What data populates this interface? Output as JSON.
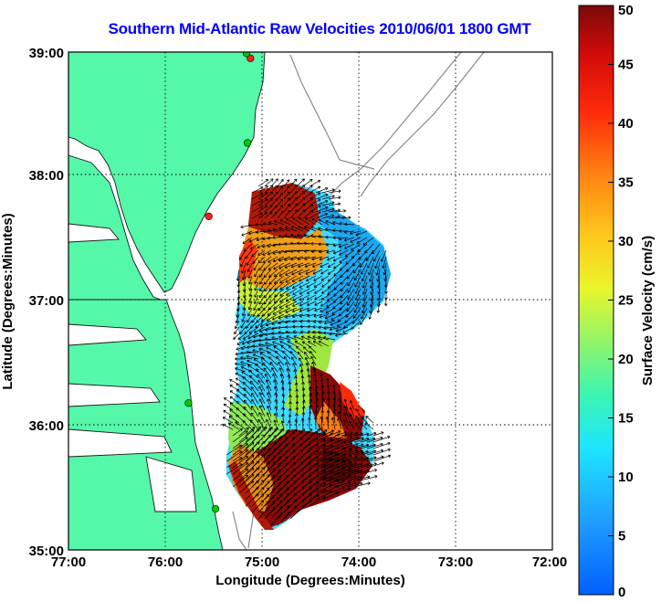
{
  "title": "Southern Mid-Atlantic Raw Velocities 2010/06/01 1800 GMT",
  "map": {
    "xlabel": "Longitude (Degrees:Minutes)",
    "ylabel": "Latitude (Degrees:Minutes)",
    "lon_range": [
      -77,
      -72
    ],
    "lat_range": [
      35,
      39
    ],
    "x_ticks": [
      "77:00",
      "76:00",
      "75:00",
      "74:00",
      "73:00",
      "72:00"
    ],
    "y_ticks": [
      "39:00",
      "38:00",
      "37:00",
      "36:00",
      "35:00"
    ],
    "land_color": "#55f7a8",
    "grid": "dotted"
  },
  "colorbar": {
    "label": "Surface Velocity (cm/s)",
    "ticks": [
      "50",
      "45",
      "40",
      "35",
      "30",
      "25",
      "20",
      "15",
      "10",
      "5",
      "0"
    ],
    "range": [
      0,
      50
    ]
  },
  "stations": [
    {
      "lon": -75.12,
      "lat": 38.95,
      "color": "#ff2020"
    },
    {
      "lon": -75.16,
      "lat": 38.99,
      "color": "#00cc00"
    },
    {
      "lon": -75.15,
      "lat": 38.27,
      "color": "#00cc00"
    },
    {
      "lon": -75.55,
      "lat": 37.68,
      "color": "#ff2020"
    },
    {
      "lon": -75.76,
      "lat": 36.18,
      "color": "#00cc00"
    },
    {
      "lon": -75.48,
      "lat": 35.33,
      "color": "#00cc00"
    }
  ]
}
